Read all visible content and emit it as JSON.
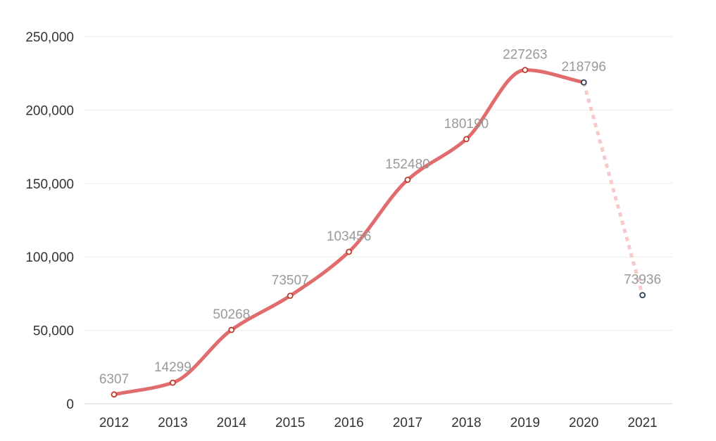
{
  "chart_data": {
    "type": "line",
    "categories": [
      "2012",
      "2013",
      "2014",
      "2015",
      "2016",
      "2017",
      "2018",
      "2019",
      "2020",
      "2021"
    ],
    "values": [
      6307,
      14299,
      50268,
      73507,
      103456,
      152480,
      180190,
      227263,
      218796,
      73936
    ],
    "data_labels": [
      "6307",
      "14299",
      "50268",
      "73507",
      "103456",
      "152480",
      "180190",
      "227263",
      "218796",
      "73936"
    ],
    "y_ticks": [
      "0",
      "50,000",
      "100,000",
      "150,000",
      "200,000",
      "250,000"
    ],
    "y_tick_values": [
      0,
      50000,
      100000,
      150000,
      200000,
      250000
    ],
    "ylim": [
      0,
      250000
    ],
    "grid": true,
    "line_color": "#e06c6e",
    "projection_color": "#f7c9c9",
    "projected_from_category": "2020",
    "actual_marker_color": "#c0392b",
    "projected_marker_color": "#2c3e50",
    "label_color": "#999999"
  }
}
